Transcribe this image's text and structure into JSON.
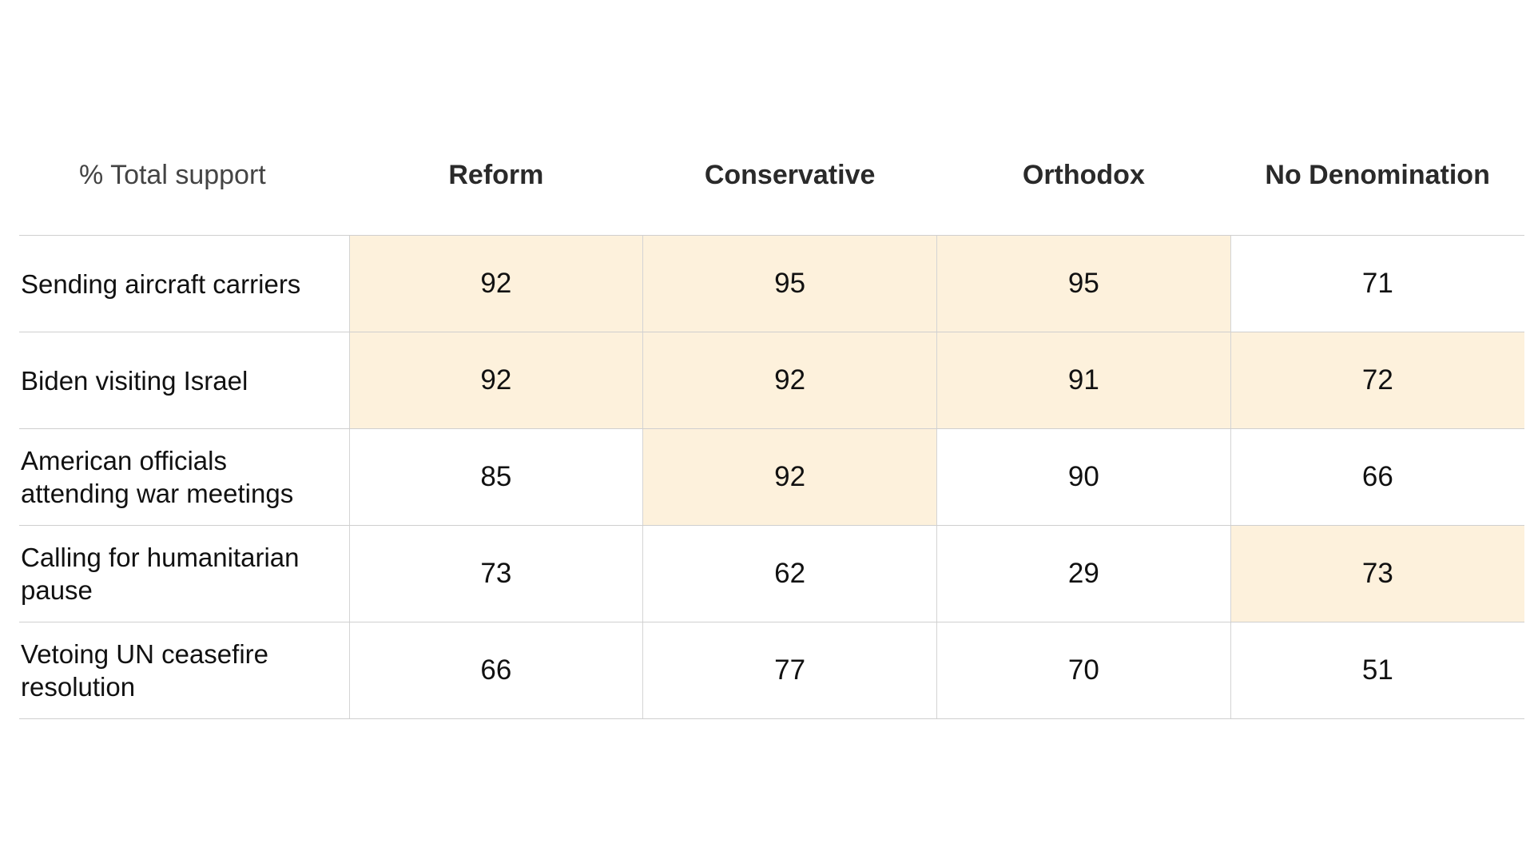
{
  "chart_data": {
    "type": "table",
    "corner_label": "% Total support",
    "columns": [
      "Reform",
      "Conservative",
      "Orthodox",
      "No Denomination"
    ],
    "highlight_color": "#fdf1dc",
    "rows": [
      {
        "label": "Sending aircraft carriers",
        "values": [
          92,
          95,
          95,
          71
        ],
        "highlighted": [
          true,
          true,
          true,
          false
        ]
      },
      {
        "label": "Biden visiting Israel",
        "values": [
          92,
          92,
          91,
          72
        ],
        "highlighted": [
          true,
          true,
          true,
          true
        ]
      },
      {
        "label": "American officials attending war meetings",
        "values": [
          85,
          92,
          90,
          66
        ],
        "highlighted": [
          false,
          true,
          false,
          false
        ]
      },
      {
        "label": "Calling for humanitarian pause",
        "values": [
          73,
          62,
          29,
          73
        ],
        "highlighted": [
          false,
          false,
          false,
          true
        ]
      },
      {
        "label": "Vetoing UN ceasefire resolution",
        "values": [
          66,
          77,
          70,
          51
        ],
        "highlighted": [
          false,
          false,
          false,
          false
        ]
      }
    ]
  }
}
